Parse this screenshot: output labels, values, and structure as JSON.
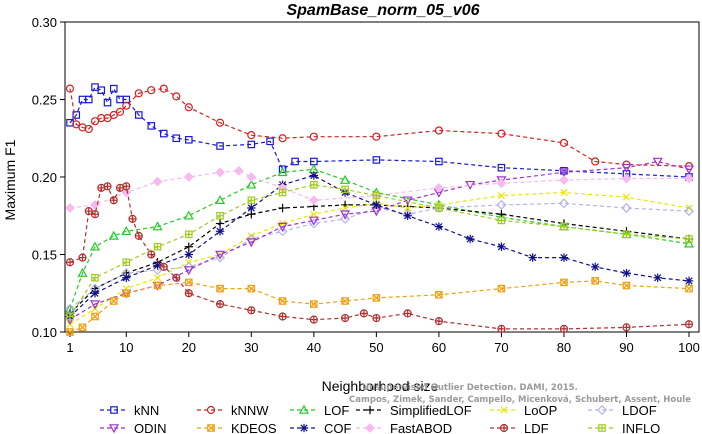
{
  "chart_data": {
    "type": "line",
    "title": "SpamBase_norm_05_v06",
    "xlabel": "Neighborhood size",
    "ylabel": "Maximum F1",
    "xlim": [
      0,
      100
    ],
    "ylim": [
      0.1,
      0.3
    ],
    "xticks": [
      1,
      10,
      20,
      30,
      40,
      50,
      60,
      70,
      80,
      90,
      100
    ],
    "yticks": [
      0.1,
      0.15,
      0.2,
      0.25,
      0.3
    ],
    "ytick_labels": [
      "0.10",
      "0.15",
      "0.20",
      "0.25",
      "0.30"
    ],
    "grid": false,
    "legend_position": "bottom",
    "watermark": "Campos, Zimek, Sander, Campello, Micenková, Schubert, Assent, Houle",
    "watermark2": "Unsupervised Outlier Detection. DAMI, 2015.",
    "series": [
      {
        "name": "kNN",
        "color": "#1a1ad6",
        "marker": "square",
        "dash": "4,3",
        "points": [
          [
            1,
            0.235
          ],
          [
            2,
            0.24
          ],
          [
            3,
            0.25
          ],
          [
            4,
            0.25
          ],
          [
            5,
            0.258
          ],
          [
            6,
            0.256
          ],
          [
            7,
            0.248
          ],
          [
            8,
            0.257
          ],
          [
            9,
            0.25
          ],
          [
            10,
            0.25
          ],
          [
            12,
            0.24
          ],
          [
            14,
            0.233
          ],
          [
            16,
            0.228
          ],
          [
            18,
            0.225
          ],
          [
            20,
            0.224
          ],
          [
            25,
            0.22
          ],
          [
            30,
            0.221
          ],
          [
            33,
            0.223
          ],
          [
            35,
            0.205
          ],
          [
            37,
            0.21
          ],
          [
            40,
            0.21
          ],
          [
            50,
            0.211
          ],
          [
            60,
            0.21
          ],
          [
            70,
            0.206
          ],
          [
            80,
            0.204
          ],
          [
            90,
            0.202
          ],
          [
            100,
            0.2
          ]
        ]
      },
      {
        "name": "kNNW",
        "color": "#d42020",
        "marker": "circle",
        "dash": "4,3",
        "points": [
          [
            1,
            0.257
          ],
          [
            2,
            0.234
          ],
          [
            3,
            0.232
          ],
          [
            4,
            0.231
          ],
          [
            5,
            0.236
          ],
          [
            6,
            0.238
          ],
          [
            7,
            0.238
          ],
          [
            8,
            0.24
          ],
          [
            9,
            0.242
          ],
          [
            10,
            0.246
          ],
          [
            12,
            0.254
          ],
          [
            14,
            0.256
          ],
          [
            16,
            0.257
          ],
          [
            18,
            0.252
          ],
          [
            20,
            0.245
          ],
          [
            25,
            0.235
          ],
          [
            30,
            0.227
          ],
          [
            35,
            0.225
          ],
          [
            40,
            0.226
          ],
          [
            50,
            0.226
          ],
          [
            60,
            0.23
          ],
          [
            70,
            0.228
          ],
          [
            80,
            0.222
          ],
          [
            85,
            0.21
          ],
          [
            90,
            0.208
          ],
          [
            100,
            0.207
          ]
        ]
      },
      {
        "name": "LOF",
        "color": "#22cc22",
        "marker": "triangle",
        "dash": "4,3",
        "points": [
          [
            1,
            0.115
          ],
          [
            3,
            0.138
          ],
          [
            5,
            0.155
          ],
          [
            8,
            0.162
          ],
          [
            10,
            0.165
          ],
          [
            15,
            0.168
          ],
          [
            20,
            0.175
          ],
          [
            25,
            0.185
          ],
          [
            30,
            0.195
          ],
          [
            35,
            0.203
          ],
          [
            40,
            0.205
          ],
          [
            45,
            0.198
          ],
          [
            50,
            0.19
          ],
          [
            60,
            0.182
          ],
          [
            70,
            0.174
          ],
          [
            80,
            0.168
          ],
          [
            90,
            0.163
          ],
          [
            100,
            0.157
          ]
        ]
      },
      {
        "name": "SimplifiedLOF",
        "color": "#000000",
        "marker": "plus",
        "dash": "4,3",
        "points": [
          [
            1,
            0.112
          ],
          [
            5,
            0.128
          ],
          [
            10,
            0.138
          ],
          [
            15,
            0.145
          ],
          [
            20,
            0.155
          ],
          [
            25,
            0.17
          ],
          [
            30,
            0.176
          ],
          [
            35,
            0.18
          ],
          [
            40,
            0.181
          ],
          [
            45,
            0.182
          ],
          [
            50,
            0.182
          ],
          [
            55,
            0.181
          ],
          [
            60,
            0.18
          ],
          [
            70,
            0.176
          ],
          [
            80,
            0.17
          ],
          [
            90,
            0.165
          ],
          [
            100,
            0.16
          ]
        ]
      },
      {
        "name": "LoOP",
        "color": "#e8e800",
        "marker": "cross",
        "dash": "4,3",
        "points": [
          [
            1,
            0.105
          ],
          [
            5,
            0.115
          ],
          [
            10,
            0.128
          ],
          [
            15,
            0.135
          ],
          [
            20,
            0.145
          ],
          [
            25,
            0.15
          ],
          [
            30,
            0.162
          ],
          [
            35,
            0.17
          ],
          [
            40,
            0.176
          ],
          [
            45,
            0.18
          ],
          [
            50,
            0.183
          ],
          [
            55,
            0.18
          ],
          [
            60,
            0.182
          ],
          [
            70,
            0.188
          ],
          [
            80,
            0.19
          ],
          [
            90,
            0.187
          ],
          [
            100,
            0.18
          ]
        ]
      },
      {
        "name": "LDOF",
        "color": "#b4b4ec",
        "marker": "diamond",
        "dash": "4,3",
        "points": [
          [
            1,
            0.115
          ],
          [
            5,
            0.128
          ],
          [
            10,
            0.138
          ],
          [
            15,
            0.14
          ],
          [
            20,
            0.142
          ],
          [
            25,
            0.148
          ],
          [
            30,
            0.16
          ],
          [
            35,
            0.165
          ],
          [
            40,
            0.17
          ],
          [
            45,
            0.173
          ],
          [
            50,
            0.18
          ],
          [
            55,
            0.176
          ],
          [
            60,
            0.18
          ],
          [
            70,
            0.182
          ],
          [
            80,
            0.183
          ],
          [
            90,
            0.18
          ],
          [
            100,
            0.178
          ]
        ]
      },
      {
        "name": "ODIN",
        "color": "#a030d0",
        "marker": "triangle-down",
        "dash": "4,3",
        "points": [
          [
            1,
            0.108
          ],
          [
            5,
            0.118
          ],
          [
            10,
            0.125
          ],
          [
            15,
            0.13
          ],
          [
            20,
            0.14
          ],
          [
            25,
            0.15
          ],
          [
            30,
            0.158
          ],
          [
            35,
            0.168
          ],
          [
            40,
            0.172
          ],
          [
            45,
            0.176
          ],
          [
            50,
            0.178
          ],
          [
            55,
            0.185
          ],
          [
            60,
            0.19
          ],
          [
            65,
            0.195
          ],
          [
            70,
            0.198
          ],
          [
            80,
            0.203
          ],
          [
            90,
            0.206
          ],
          [
            95,
            0.21
          ],
          [
            100,
            0.205
          ]
        ]
      },
      {
        "name": "KDEOS",
        "color": "#eea010",
        "marker": "square-x",
        "dash": "4,3",
        "points": [
          [
            1,
            0.1
          ],
          [
            3,
            0.103
          ],
          [
            5,
            0.11
          ],
          [
            8,
            0.12
          ],
          [
            10,
            0.125
          ],
          [
            15,
            0.13
          ],
          [
            20,
            0.132
          ],
          [
            25,
            0.128
          ],
          [
            30,
            0.128
          ],
          [
            35,
            0.12
          ],
          [
            40,
            0.118
          ],
          [
            45,
            0.12
          ],
          [
            50,
            0.122
          ],
          [
            60,
            0.124
          ],
          [
            70,
            0.128
          ],
          [
            80,
            0.132
          ],
          [
            85,
            0.133
          ],
          [
            90,
            0.13
          ],
          [
            100,
            0.128
          ]
        ]
      },
      {
        "name": "COF",
        "color": "#101088",
        "marker": "star",
        "dash": "4,3",
        "points": [
          [
            1,
            0.11
          ],
          [
            5,
            0.125
          ],
          [
            10,
            0.135
          ],
          [
            15,
            0.143
          ],
          [
            20,
            0.15
          ],
          [
            25,
            0.165
          ],
          [
            30,
            0.18
          ],
          [
            35,
            0.195
          ],
          [
            40,
            0.201
          ],
          [
            45,
            0.19
          ],
          [
            50,
            0.182
          ],
          [
            55,
            0.175
          ],
          [
            60,
            0.168
          ],
          [
            65,
            0.16
          ],
          [
            70,
            0.155
          ],
          [
            75,
            0.148
          ],
          [
            80,
            0.148
          ],
          [
            85,
            0.142
          ],
          [
            90,
            0.138
          ],
          [
            95,
            0.135
          ],
          [
            100,
            0.133
          ]
        ]
      },
      {
        "name": "FastABOD",
        "color": "#f8b8f0",
        "marker": "diamond-filled",
        "dash": "4,3",
        "points": [
          [
            1,
            0.18
          ],
          [
            5,
            0.182
          ],
          [
            10,
            0.19
          ],
          [
            15,
            0.197
          ],
          [
            20,
            0.2
          ],
          [
            25,
            0.203
          ],
          [
            28,
            0.204
          ],
          [
            30,
            0.2
          ],
          [
            35,
            0.193
          ],
          [
            40,
            0.185
          ],
          [
            50,
            0.188
          ],
          [
            60,
            0.193
          ],
          [
            70,
            0.196
          ],
          [
            80,
            0.198
          ],
          [
            90,
            0.199
          ],
          [
            100,
            0.199
          ]
        ]
      },
      {
        "name": "LDF",
        "color": "#b03030",
        "marker": "circle-plus",
        "dash": "4,3",
        "points": [
          [
            1,
            0.145
          ],
          [
            3,
            0.148
          ],
          [
            4,
            0.178
          ],
          [
            5,
            0.176
          ],
          [
            6,
            0.193
          ],
          [
            7,
            0.194
          ],
          [
            8,
            0.185
          ],
          [
            9,
            0.193
          ],
          [
            10,
            0.194
          ],
          [
            11,
            0.173
          ],
          [
            12,
            0.162
          ],
          [
            14,
            0.15
          ],
          [
            16,
            0.142
          ],
          [
            18,
            0.135
          ],
          [
            20,
            0.125
          ],
          [
            25,
            0.118
          ],
          [
            30,
            0.114
          ],
          [
            35,
            0.11
          ],
          [
            40,
            0.108
          ],
          [
            45,
            0.109
          ],
          [
            48,
            0.112
          ],
          [
            50,
            0.109
          ],
          [
            55,
            0.112
          ],
          [
            60,
            0.107
          ],
          [
            70,
            0.102
          ],
          [
            80,
            0.102
          ],
          [
            90,
            0.103
          ],
          [
            100,
            0.105
          ]
        ]
      },
      {
        "name": "INFLO",
        "color": "#a0cc20",
        "marker": "square-plus",
        "dash": "4,3",
        "points": [
          [
            1,
            0.11
          ],
          [
            5,
            0.135
          ],
          [
            10,
            0.145
          ],
          [
            15,
            0.155
          ],
          [
            20,
            0.163
          ],
          [
            25,
            0.175
          ],
          [
            30,
            0.185
          ],
          [
            35,
            0.19
          ],
          [
            40,
            0.195
          ],
          [
            45,
            0.192
          ],
          [
            50,
            0.188
          ],
          [
            60,
            0.18
          ],
          [
            70,
            0.172
          ],
          [
            80,
            0.168
          ],
          [
            90,
            0.163
          ],
          [
            100,
            0.16
          ]
        ]
      }
    ]
  }
}
